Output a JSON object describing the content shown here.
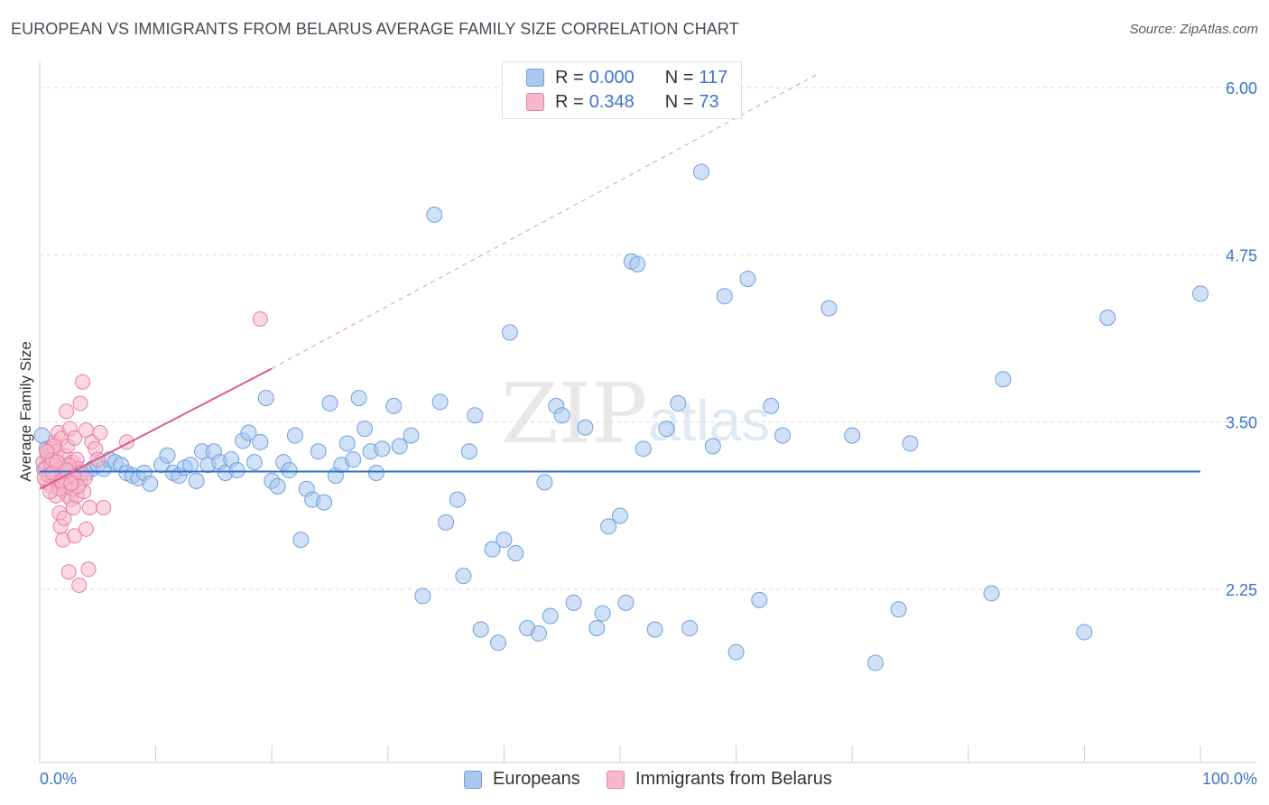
{
  "title": "EUROPEAN VS IMMIGRANTS FROM BELARUS AVERAGE FAMILY SIZE CORRELATION CHART",
  "source": "Source: ZipAtlas.com",
  "watermark": {
    "zip": "ZIP",
    "atlas": "atlas"
  },
  "legend": {
    "rows": [
      {
        "r_label": "R =",
        "r_value": "0.000",
        "n_label": "N =",
        "n_value": "117",
        "color": "#a9c8f0",
        "border": "#6f9fdc"
      },
      {
        "r_label": "R =",
        "r_value": "0.348",
        "n_label": "N =",
        "n_value": "73",
        "color": "#f7b8cc",
        "border": "#e57fa0"
      }
    ]
  },
  "bottom_legend": [
    {
      "label": "Europeans",
      "color": "#a9c8f0",
      "border": "#6f9fdc"
    },
    {
      "label": "Immigrants from Belarus",
      "color": "#f7b8cc",
      "border": "#e57fa0"
    }
  ],
  "chart_data": {
    "type": "scatter",
    "title": "EUROPEAN VS IMMIGRANTS FROM BELARUS AVERAGE FAMILY SIZE CORRELATION CHART",
    "xlabel": "",
    "ylabel": "Average Family Size",
    "xlim": [
      0,
      100
    ],
    "ylim": [
      1.0,
      6.1
    ],
    "x_tick_labels": [
      "0.0%",
      "100.0%"
    ],
    "y_ticks": [
      2.25,
      3.5,
      4.75,
      6.0
    ],
    "y_tick_labels": [
      "2.25",
      "3.50",
      "4.75",
      "6.00"
    ],
    "grid": true,
    "series": [
      {
        "name": "Europeans",
        "color": "#a9c8f0",
        "stroke": "#6f9fdc",
        "trend": {
          "x": [
            0,
            100
          ],
          "y": [
            3.13,
            3.13
          ],
          "color": "#2f6fd1"
        },
        "points": [
          [
            0.2,
            3.4
          ],
          [
            0.4,
            3.15
          ],
          [
            0.6,
            3.3
          ],
          [
            0.8,
            3.1
          ],
          [
            1.0,
            3.22
          ],
          [
            1.2,
            3.12
          ],
          [
            1.5,
            3.08
          ],
          [
            1.8,
            3.18
          ],
          [
            2.0,
            3.12
          ],
          [
            2.2,
            3.1
          ],
          [
            2.4,
            3.14
          ],
          [
            2.6,
            3.1
          ],
          [
            3.0,
            3.1
          ],
          [
            3.4,
            3.1
          ],
          [
            4.0,
            3.12
          ],
          [
            4.5,
            3.15
          ],
          [
            5.0,
            3.18
          ],
          [
            5.5,
            3.15
          ],
          [
            6.0,
            3.22
          ],
          [
            6.5,
            3.2
          ],
          [
            7.0,
            3.18
          ],
          [
            7.5,
            3.12
          ],
          [
            8.0,
            3.1
          ],
          [
            8.5,
            3.08
          ],
          [
            9.0,
            3.12
          ],
          [
            9.5,
            3.04
          ],
          [
            10.5,
            3.18
          ],
          [
            11.0,
            3.25
          ],
          [
            11.5,
            3.12
          ],
          [
            12.0,
            3.1
          ],
          [
            12.5,
            3.16
          ],
          [
            13.0,
            3.18
          ],
          [
            13.5,
            3.06
          ],
          [
            14.0,
            3.28
          ],
          [
            14.5,
            3.18
          ],
          [
            15.0,
            3.28
          ],
          [
            15.5,
            3.2
          ],
          [
            16.0,
            3.12
          ],
          [
            16.5,
            3.22
          ],
          [
            17.0,
            3.14
          ],
          [
            17.5,
            3.36
          ],
          [
            18.0,
            3.42
          ],
          [
            18.5,
            3.2
          ],
          [
            19.0,
            3.35
          ],
          [
            19.5,
            3.68
          ],
          [
            20.0,
            3.06
          ],
          [
            20.5,
            3.02
          ],
          [
            21.0,
            3.2
          ],
          [
            21.5,
            3.14
          ],
          [
            22.0,
            3.4
          ],
          [
            22.5,
            2.62
          ],
          [
            23.0,
            3.0
          ],
          [
            23.5,
            2.92
          ],
          [
            24.0,
            3.28
          ],
          [
            24.5,
            2.9
          ],
          [
            25.0,
            3.64
          ],
          [
            25.5,
            3.1
          ],
          [
            26.0,
            3.18
          ],
          [
            26.5,
            3.34
          ],
          [
            27.0,
            3.22
          ],
          [
            27.5,
            3.68
          ],
          [
            28.0,
            3.45
          ],
          [
            28.5,
            3.28
          ],
          [
            29.0,
            3.12
          ],
          [
            29.5,
            3.3
          ],
          [
            30.5,
            3.62
          ],
          [
            31.0,
            3.32
          ],
          [
            32.0,
            3.4
          ],
          [
            33.0,
            2.2
          ],
          [
            34.0,
            5.05
          ],
          [
            34.5,
            3.65
          ],
          [
            35.0,
            2.75
          ],
          [
            36.0,
            2.92
          ],
          [
            36.5,
            2.35
          ],
          [
            37.0,
            3.28
          ],
          [
            37.5,
            3.55
          ],
          [
            38.0,
            1.95
          ],
          [
            39.0,
            2.55
          ],
          [
            39.5,
            1.85
          ],
          [
            40.0,
            2.62
          ],
          [
            40.5,
            4.17
          ],
          [
            41.0,
            2.52
          ],
          [
            42.0,
            1.96
          ],
          [
            43.0,
            1.92
          ],
          [
            43.5,
            3.05
          ],
          [
            44.0,
            2.05
          ],
          [
            44.5,
            3.62
          ],
          [
            45.0,
            3.55
          ],
          [
            46.0,
            2.15
          ],
          [
            47.0,
            3.46
          ],
          [
            48.0,
            1.96
          ],
          [
            48.5,
            2.07
          ],
          [
            49.0,
            2.72
          ],
          [
            50.0,
            2.8
          ],
          [
            50.5,
            2.15
          ],
          [
            51.0,
            4.7
          ],
          [
            51.5,
            4.68
          ],
          [
            52.0,
            3.3
          ],
          [
            53.0,
            1.95
          ],
          [
            54.0,
            3.45
          ],
          [
            55.0,
            3.64
          ],
          [
            56.0,
            1.96
          ],
          [
            57.0,
            5.37
          ],
          [
            58.0,
            3.32
          ],
          [
            59.0,
            4.44
          ],
          [
            60.0,
            1.78
          ],
          [
            61.0,
            4.57
          ],
          [
            62.0,
            2.17
          ],
          [
            63.0,
            3.62
          ],
          [
            64.0,
            3.4
          ],
          [
            68.0,
            4.35
          ],
          [
            70.0,
            3.4
          ],
          [
            72.0,
            1.7
          ],
          [
            74.0,
            2.1
          ],
          [
            75.0,
            3.34
          ],
          [
            82.0,
            2.22
          ],
          [
            83.0,
            3.82
          ],
          [
            90.0,
            1.93
          ],
          [
            92.0,
            4.28
          ],
          [
            100.0,
            4.46
          ]
        ]
      },
      {
        "name": "Immigrants from Belarus",
        "color": "#f7b8cc",
        "stroke": "#e57fa0",
        "trend": {
          "x": [
            0,
            20
          ],
          "y": [
            3.0,
            3.9
          ],
          "color": "#e05a87",
          "dashed_extension_to": [
            67,
            6.1
          ]
        },
        "points": [
          [
            0.3,
            3.2
          ],
          [
            0.5,
            3.15
          ],
          [
            0.6,
            3.05
          ],
          [
            0.7,
            3.25
          ],
          [
            0.8,
            3.1
          ],
          [
            0.9,
            3.3
          ],
          [
            1.0,
            3.18
          ],
          [
            1.0,
            3.02
          ],
          [
            1.1,
            3.22
          ],
          [
            1.2,
            3.08
          ],
          [
            1.3,
            3.35
          ],
          [
            1.4,
            3.12
          ],
          [
            1.4,
            2.95
          ],
          [
            1.5,
            3.28
          ],
          [
            1.6,
            3.05
          ],
          [
            1.6,
            3.42
          ],
          [
            1.7,
            2.82
          ],
          [
            1.8,
            3.15
          ],
          [
            1.8,
            2.72
          ],
          [
            1.9,
            3.38
          ],
          [
            2.0,
            3.1
          ],
          [
            2.0,
            2.62
          ],
          [
            2.1,
            2.78
          ],
          [
            2.2,
            3.25
          ],
          [
            2.2,
            3.02
          ],
          [
            2.3,
            3.58
          ],
          [
            2.4,
            2.95
          ],
          [
            2.4,
            3.32
          ],
          [
            2.5,
            2.38
          ],
          [
            2.6,
            3.12
          ],
          [
            2.6,
            3.45
          ],
          [
            2.7,
            2.92
          ],
          [
            2.8,
            3.2
          ],
          [
            2.8,
            3.0
          ],
          [
            2.9,
            2.86
          ],
          [
            3.0,
            3.38
          ],
          [
            3.0,
            2.65
          ],
          [
            3.1,
            3.08
          ],
          [
            3.2,
            2.95
          ],
          [
            3.2,
            3.22
          ],
          [
            3.3,
            3.15
          ],
          [
            3.4,
            2.28
          ],
          [
            3.5,
            3.05
          ],
          [
            3.5,
            3.64
          ],
          [
            3.6,
            3.12
          ],
          [
            3.7,
            3.8
          ],
          [
            3.8,
            2.98
          ],
          [
            3.9,
            3.08
          ],
          [
            4.0,
            2.7
          ],
          [
            4.0,
            3.44
          ],
          [
            4.2,
            2.4
          ],
          [
            4.3,
            2.86
          ],
          [
            4.5,
            3.35
          ],
          [
            4.8,
            3.3
          ],
          [
            5.0,
            3.22
          ],
          [
            5.2,
            3.42
          ],
          [
            5.5,
            2.86
          ],
          [
            7.5,
            3.35
          ],
          [
            19.0,
            4.27
          ],
          [
            1.2,
            3.32
          ],
          [
            1.7,
            3.0
          ],
          [
            2.1,
            3.08
          ],
          [
            2.5,
            3.18
          ],
          [
            2.9,
            3.1
          ],
          [
            3.3,
            3.02
          ],
          [
            0.4,
            3.08
          ],
          [
            0.6,
            3.28
          ],
          [
            0.9,
            2.98
          ],
          [
            1.1,
            3.12
          ],
          [
            1.5,
            3.2
          ],
          [
            1.9,
            3.06
          ],
          [
            2.3,
            3.14
          ],
          [
            2.7,
            3.04
          ]
        ]
      }
    ]
  }
}
